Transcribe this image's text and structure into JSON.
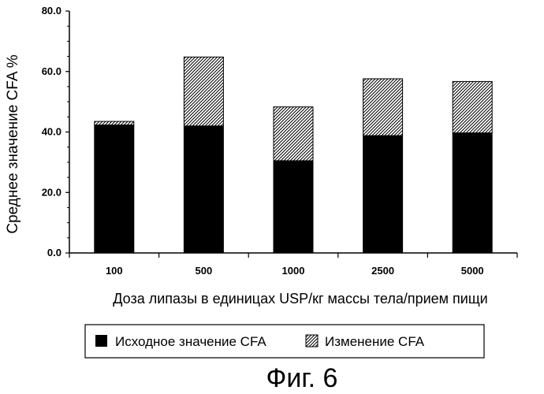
{
  "chart_data": {
    "type": "bar",
    "stacked": true,
    "categories": [
      "100",
      "500",
      "1000",
      "2500",
      "5000"
    ],
    "series": [
      {
        "name": "Исходное значение CFA",
        "values": [
          42.3,
          42.0,
          30.5,
          38.8,
          39.7
        ],
        "color": "#000000",
        "pattern": "solid"
      },
      {
        "name": "Изменение CFA",
        "values": [
          1.2,
          22.8,
          17.8,
          18.8,
          17.0
        ],
        "color": "#000000",
        "pattern": "hatched"
      }
    ],
    "title": "",
    "xlabel": "Доза липазы в единицах USP/кг массы тела/прием пищи",
    "ylabel": "Среднее значение CFA %",
    "ylim": [
      0,
      80
    ],
    "yticks": [
      "0.0",
      "20.0",
      "40.0",
      "60.0",
      "80.0"
    ],
    "grid": false,
    "legend_position": "bottom"
  },
  "caption": "Фиг. 6"
}
